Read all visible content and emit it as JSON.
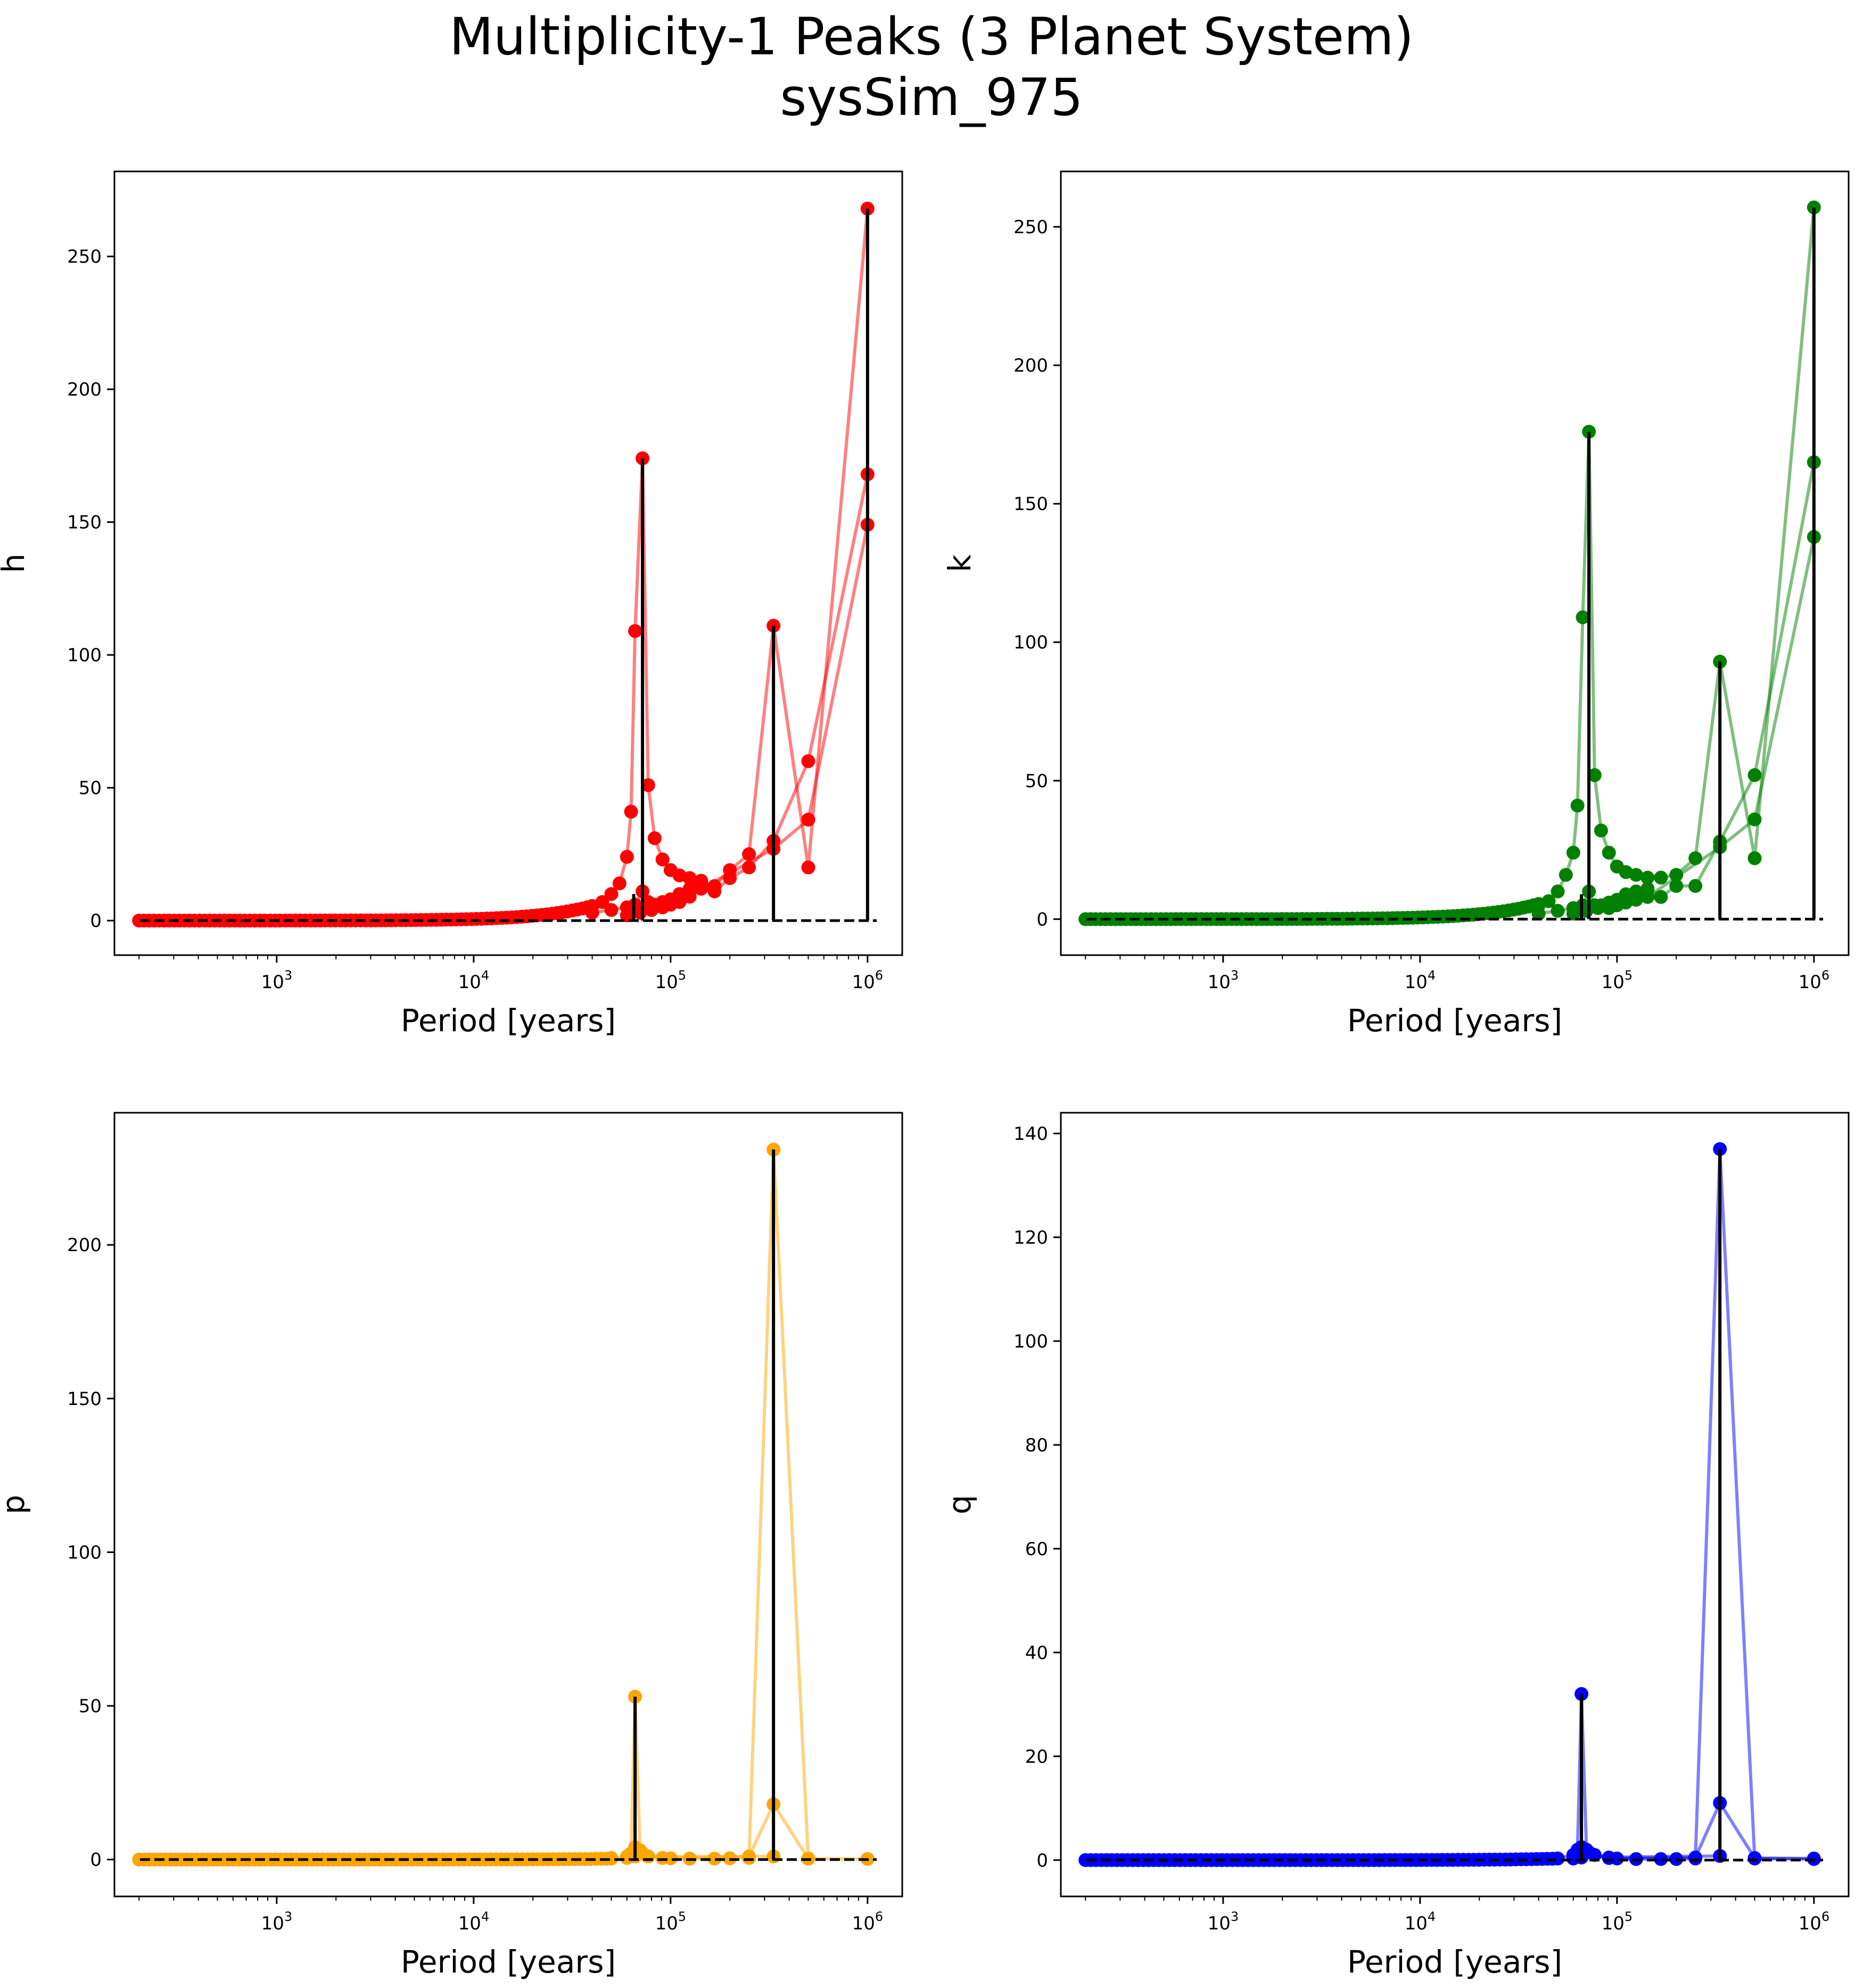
{
  "figure": {
    "title_line1": "Multiplicity-1 Peaks (3 Planet System)",
    "title_line2": "sysSim_975"
  },
  "chart_data": [
    {
      "type": "scatter",
      "name": "h-panel",
      "xlabel": "Period [years]",
      "ylabel": "h",
      "xscale": "log",
      "xlim": [
        150,
        1500000
      ],
      "ylim": [
        -13,
        282
      ],
      "xticks": [
        1000,
        10000,
        100000,
        1000000
      ],
      "xtick_labels": [
        {
          "base": "10",
          "exp": "3"
        },
        {
          "base": "10",
          "exp": "4"
        },
        {
          "base": "10",
          "exp": "5"
        },
        {
          "base": "10",
          "exp": "6"
        }
      ],
      "yticks": [
        0,
        50,
        100,
        150,
        200,
        250
      ],
      "ytick_labels": [
        "0",
        "50",
        "100",
        "150",
        "200",
        "250"
      ],
      "color": "#ff0000",
      "peaks": [
        {
          "x": 65000,
          "y": 10
        },
        {
          "x": 72000,
          "y": 174
        },
        {
          "x": 333000,
          "y": 111
        },
        {
          "x": 1000000,
          "y": 268
        }
      ],
      "series": [
        {
          "values": [
            [
              40000,
              5.5
            ],
            [
              45000,
              7
            ],
            [
              50000,
              10
            ],
            [
              55000,
              14
            ],
            [
              60000,
              24
            ],
            [
              63000,
              41
            ],
            [
              66000,
              109
            ],
            [
              72000,
              174
            ],
            [
              77000,
              51
            ],
            [
              83000,
              31
            ],
            [
              91000,
              23
            ],
            [
              100000,
              19
            ],
            [
              111000,
              17
            ],
            [
              125000,
              16
            ],
            [
              143000,
              15
            ],
            [
              167000,
              13
            ],
            [
              200000,
              19
            ],
            [
              250000,
              25
            ],
            [
              333000,
              111
            ],
            [
              500000,
              20
            ],
            [
              1000000,
              268
            ]
          ]
        },
        {
          "values": [
            [
              40000,
              3
            ],
            [
              50000,
              4
            ],
            [
              60000,
              5
            ],
            [
              66000,
              6
            ],
            [
              72000,
              11
            ],
            [
              77000,
              7
            ],
            [
              83000,
              6
            ],
            [
              91000,
              7
            ],
            [
              100000,
              8
            ],
            [
              111000,
              10
            ],
            [
              125000,
              12
            ],
            [
              143000,
              14
            ],
            [
              167000,
              11
            ],
            [
              200000,
              16
            ],
            [
              250000,
              20
            ],
            [
              333000,
              30
            ],
            [
              500000,
              60
            ],
            [
              1000000,
              168
            ]
          ]
        },
        {
          "values": [
            [
              60000,
              2
            ],
            [
              70000,
              3
            ],
            [
              80000,
              4
            ],
            [
              91000,
              5
            ],
            [
              100000,
              6
            ],
            [
              111000,
              7
            ],
            [
              125000,
              9
            ],
            [
              143000,
              12
            ],
            [
              333000,
              27
            ],
            [
              500000,
              38
            ],
            [
              1000000,
              149
            ]
          ]
        }
      ],
      "baseline": {
        "x_start": 200,
        "x_end": 40000
      }
    },
    {
      "type": "scatter",
      "name": "k-panel",
      "xlabel": "Period [years]",
      "ylabel": "k",
      "xscale": "log",
      "xlim": [
        150,
        1500000
      ],
      "ylim": [
        -13,
        270
      ],
      "xticks": [
        1000,
        10000,
        100000,
        1000000
      ],
      "xtick_labels": [
        {
          "base": "10",
          "exp": "3"
        },
        {
          "base": "10",
          "exp": "4"
        },
        {
          "base": "10",
          "exp": "5"
        },
        {
          "base": "10",
          "exp": "6"
        }
      ],
      "yticks": [
        0,
        50,
        100,
        150,
        200,
        250
      ],
      "ytick_labels": [
        "0",
        "50",
        "100",
        "150",
        "200",
        "250"
      ],
      "color": "#008000",
      "peaks": [
        {
          "x": 66000,
          "y": 9
        },
        {
          "x": 72000,
          "y": 176
        },
        {
          "x": 333000,
          "y": 93
        },
        {
          "x": 1000000,
          "y": 257
        }
      ],
      "series": [
        {
          "values": [
            [
              40000,
              5
            ],
            [
              45000,
              6.5
            ],
            [
              50000,
              10
            ],
            [
              55000,
              16
            ],
            [
              60000,
              24
            ],
            [
              63000,
              41
            ],
            [
              67000,
              109
            ],
            [
              72000,
              176
            ],
            [
              77000,
              52
            ],
            [
              83000,
              32
            ],
            [
              91000,
              24
            ],
            [
              100000,
              19
            ],
            [
              111000,
              17
            ],
            [
              125000,
              16
            ],
            [
              143000,
              15
            ],
            [
              167000,
              15
            ],
            [
              200000,
              16
            ],
            [
              250000,
              22
            ],
            [
              333000,
              93
            ],
            [
              500000,
              22
            ],
            [
              1000000,
              257
            ]
          ]
        },
        {
          "values": [
            [
              40000,
              2
            ],
            [
              50000,
              3
            ],
            [
              60000,
              4
            ],
            [
              67000,
              5
            ],
            [
              72000,
              10
            ],
            [
              77000,
              5
            ],
            [
              83000,
              5
            ],
            [
              91000,
              6
            ],
            [
              100000,
              7
            ],
            [
              111000,
              9
            ],
            [
              125000,
              10
            ],
            [
              143000,
              11
            ],
            [
              167000,
              8
            ],
            [
              200000,
              12
            ],
            [
              250000,
              12
            ],
            [
              333000,
              28
            ],
            [
              500000,
              52
            ],
            [
              1000000,
              165
            ]
          ]
        },
        {
          "values": [
            [
              60000,
              2
            ],
            [
              70000,
              3
            ],
            [
              80000,
              4
            ],
            [
              91000,
              4
            ],
            [
              100000,
              5
            ],
            [
              111000,
              6
            ],
            [
              125000,
              7
            ],
            [
              143000,
              8
            ],
            [
              333000,
              26
            ],
            [
              500000,
              36
            ],
            [
              1000000,
              138
            ]
          ]
        }
      ],
      "baseline": {
        "x_start": 200,
        "x_end": 40000
      }
    },
    {
      "type": "scatter",
      "name": "p-panel",
      "xlabel": "Period [years]",
      "ylabel": "p",
      "xscale": "log",
      "xlim": [
        150,
        1500000
      ],
      "ylim": [
        -12,
        243
      ],
      "xticks": [
        1000,
        10000,
        100000,
        1000000
      ],
      "xtick_labels": [
        {
          "base": "10",
          "exp": "3"
        },
        {
          "base": "10",
          "exp": "4"
        },
        {
          "base": "10",
          "exp": "5"
        },
        {
          "base": "10",
          "exp": "6"
        }
      ],
      "yticks": [
        0,
        50,
        100,
        150,
        200
      ],
      "ytick_labels": [
        "0",
        "50",
        "100",
        "150",
        "200"
      ],
      "color": "#ffa500",
      "peaks": [
        {
          "x": 66000,
          "y": 53
        },
        {
          "x": 333000,
          "y": 231
        }
      ],
      "series": [
        {
          "values": [
            [
              50000,
              0.5
            ],
            [
              60000,
              1
            ],
            [
              63000,
              2
            ],
            [
              66000,
              53
            ],
            [
              70000,
              3
            ],
            [
              77000,
              1
            ],
            [
              91000,
              0.5
            ],
            [
              100000,
              0.4
            ],
            [
              125000,
              0.3
            ],
            [
              167000,
              0.3
            ],
            [
              200000,
              0.4
            ],
            [
              250000,
              0.5
            ],
            [
              333000,
              231
            ],
            [
              500000,
              0.3
            ],
            [
              1000000,
              0.2
            ]
          ]
        },
        {
          "values": [
            [
              60000,
              0.5
            ],
            [
              66000,
              4
            ],
            [
              72000,
              2
            ],
            [
              91000,
              0.5
            ],
            [
              250000,
              1
            ],
            [
              333000,
              18
            ],
            [
              500000,
              0.3
            ]
          ]
        },
        {
          "values": [
            [
              66000,
              1
            ],
            [
              333000,
              1
            ]
          ]
        }
      ],
      "baseline": {
        "x_start": 200,
        "x_end": 50000
      }
    },
    {
      "type": "scatter",
      "name": "q-panel",
      "xlabel": "Period [years]",
      "ylabel": "q",
      "xscale": "log",
      "xlim": [
        150,
        1500000
      ],
      "ylim": [
        -7,
        144
      ],
      "xticks": [
        1000,
        10000,
        100000,
        1000000
      ],
      "xtick_labels": [
        {
          "base": "10",
          "exp": "3"
        },
        {
          "base": "10",
          "exp": "4"
        },
        {
          "base": "10",
          "exp": "5"
        },
        {
          "base": "10",
          "exp": "6"
        }
      ],
      "yticks": [
        0,
        20,
        40,
        60,
        80,
        100,
        120,
        140
      ],
      "ytick_labels": [
        "0",
        "20",
        "40",
        "60",
        "80",
        "100",
        "120",
        "140"
      ],
      "color": "#0000ff",
      "peaks": [
        {
          "x": 66000,
          "y": 32
        },
        {
          "x": 333000,
          "y": 137
        }
      ],
      "series": [
        {
          "values": [
            [
              50000,
              0.3
            ],
            [
              60000,
              1
            ],
            [
              63000,
              2
            ],
            [
              66000,
              32
            ],
            [
              70000,
              2
            ],
            [
              77000,
              1
            ],
            [
              91000,
              0.5
            ],
            [
              100000,
              0.3
            ],
            [
              125000,
              0.2
            ],
            [
              167000,
              0.2
            ],
            [
              200000,
              0.2
            ],
            [
              250000,
              0.3
            ],
            [
              333000,
              137
            ],
            [
              500000,
              0.3
            ],
            [
              1000000,
              0.2
            ]
          ]
        },
        {
          "values": [
            [
              60000,
              0.3
            ],
            [
              66000,
              2.5
            ],
            [
              72000,
              1.5
            ],
            [
              91000,
              0.4
            ],
            [
              250000,
              0.5
            ],
            [
              333000,
              11
            ],
            [
              500000,
              0.4
            ],
            [
              1000000,
              0.3
            ]
          ]
        },
        {
          "values": [
            [
              66000,
              0.5
            ],
            [
              333000,
              0.8
            ]
          ]
        }
      ],
      "baseline": {
        "x_start": 200,
        "x_end": 50000
      }
    }
  ]
}
